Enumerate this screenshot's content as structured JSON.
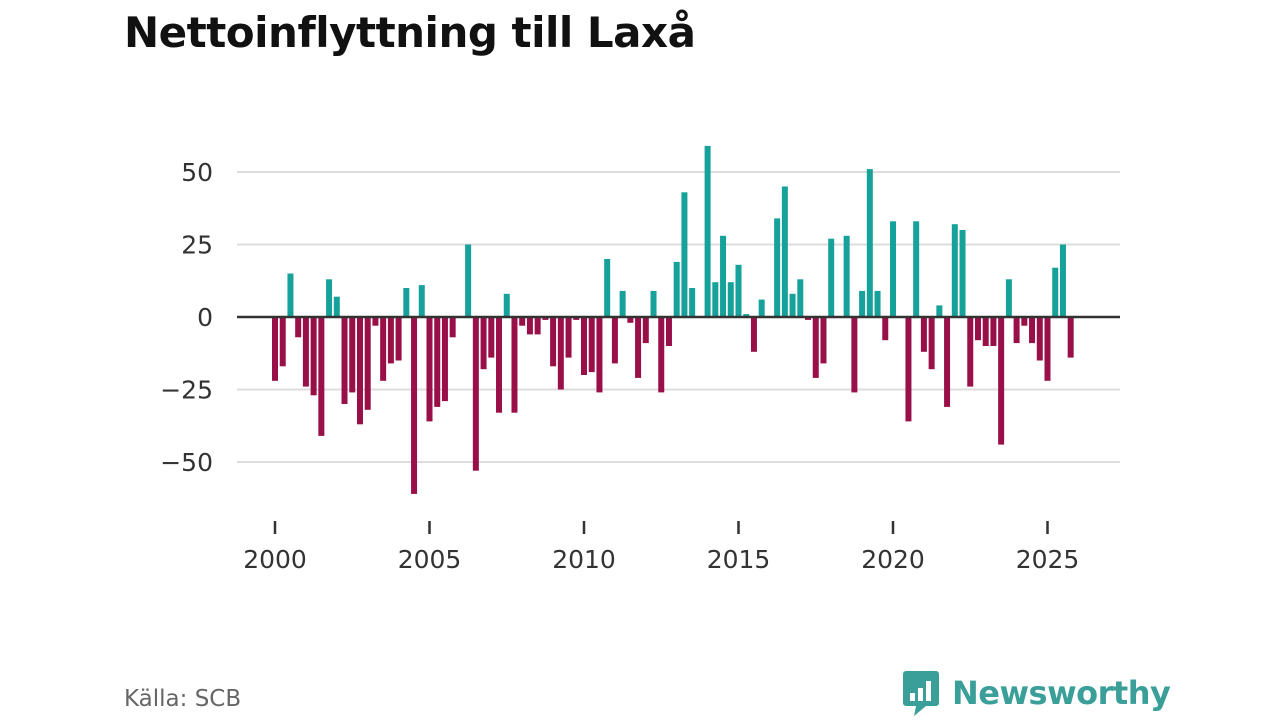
{
  "title": "Nettoinflyttning till Laxå",
  "source": "Källa: SCB",
  "brand": {
    "name": "Newsworthy",
    "icon": "bar-chart-speech-bubble-icon"
  },
  "colors": {
    "positive": "#16a19b",
    "negative": "#990f47",
    "grid": "#dddddd",
    "zero_line": "#333333",
    "text": "#333333",
    "brand": "#3a9f98"
  },
  "chart_data": {
    "type": "bar",
    "title": "Nettoinflyttning till Laxå",
    "xlabel": "",
    "ylabel": "",
    "x_unit": "quarter",
    "x_start": 2000.0,
    "x_step": 0.25,
    "values": [
      -22,
      -17,
      15,
      -7,
      -24,
      -27,
      -41,
      13,
      7,
      -30,
      -26,
      -37,
      -32,
      -3,
      -22,
      -16,
      -15,
      10,
      -61,
      11,
      -36,
      -31,
      -29,
      -7,
      0,
      25,
      -53,
      -18,
      -14,
      -33,
      8,
      -33,
      -3,
      -6,
      -6,
      -1,
      -17,
      -25,
      -14,
      -1,
      -20,
      -19,
      -26,
      20,
      -16,
      9,
      -2,
      -21,
      -9,
      9,
      -26,
      -10,
      19,
      43,
      10,
      0,
      59,
      12,
      28,
      12,
      18,
      1,
      -12,
      6,
      0,
      34,
      45,
      8,
      13,
      -1,
      -21,
      -16,
      27,
      0,
      28,
      -26,
      9,
      51,
      9,
      -8,
      33,
      0,
      -36,
      33,
      -12,
      -18,
      4,
      -31,
      32,
      30,
      -24,
      -8,
      -10,
      -10,
      -44,
      13,
      -9,
      -3,
      -9,
      -15,
      -22,
      17,
      25,
      -14
    ],
    "x_ticks": [
      2000,
      2005,
      2010,
      2015,
      2020,
      2025
    ],
    "x_tick_labels": [
      "2000",
      "2005",
      "2010",
      "2015",
      "2020",
      "2025"
    ],
    "y_ticks": [
      -50,
      -25,
      0,
      25,
      50
    ],
    "y_tick_labels": [
      "−50",
      "−25",
      "0",
      "25",
      "50"
    ],
    "xlim": [
      1999.4,
      2027.0
    ],
    "ylim": [
      -70,
      65
    ],
    "grid": true,
    "legend": "none"
  }
}
